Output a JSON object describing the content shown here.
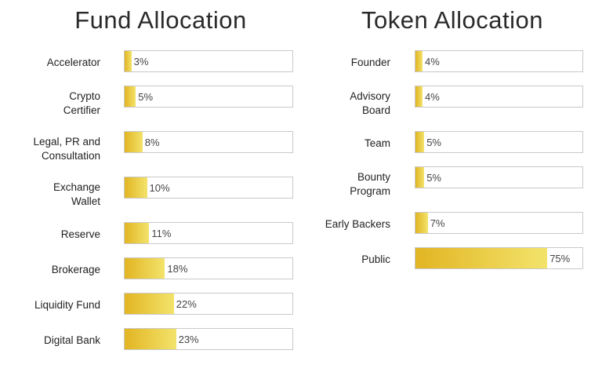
{
  "chart_data": [
    {
      "type": "bar",
      "orientation": "horizontal",
      "title": "Fund Allocation",
      "categories": [
        "Accelerator",
        "Crypto\nCertifier",
        "Legal, PR and\nConsultation",
        "Exchange\nWallet",
        "Reserve",
        "Brokerage",
        "Liquidity Fund",
        "Digital Bank"
      ],
      "values": [
        3,
        5,
        8,
        10,
        11,
        18,
        22,
        23
      ],
      "value_labels": [
        "3%",
        "5%",
        "8%",
        "10%",
        "11%",
        "18%",
        "22%",
        "23%"
      ],
      "xlim": [
        0,
        75
      ],
      "grid": false,
      "colors": {
        "bar_start": "#e2b523",
        "bar_end": "#f3e36b",
        "border": "#c9c9c9"
      }
    },
    {
      "type": "bar",
      "orientation": "horizontal",
      "title": "Token Allocation",
      "categories": [
        "Founder",
        "Advisory\nBoard",
        "Team",
        "Bounty\nProgram",
        "Early Backers",
        "Public"
      ],
      "values": [
        4,
        4,
        5,
        5,
        7,
        75
      ],
      "value_labels": [
        "4%",
        "4%",
        "5%",
        "5%",
        "7%",
        "75%"
      ],
      "xlim": [
        0,
        95
      ],
      "grid": false,
      "colors": {
        "bar_start": "#e2b523",
        "bar_end": "#f3e36b",
        "border": "#c9c9c9"
      }
    }
  ]
}
